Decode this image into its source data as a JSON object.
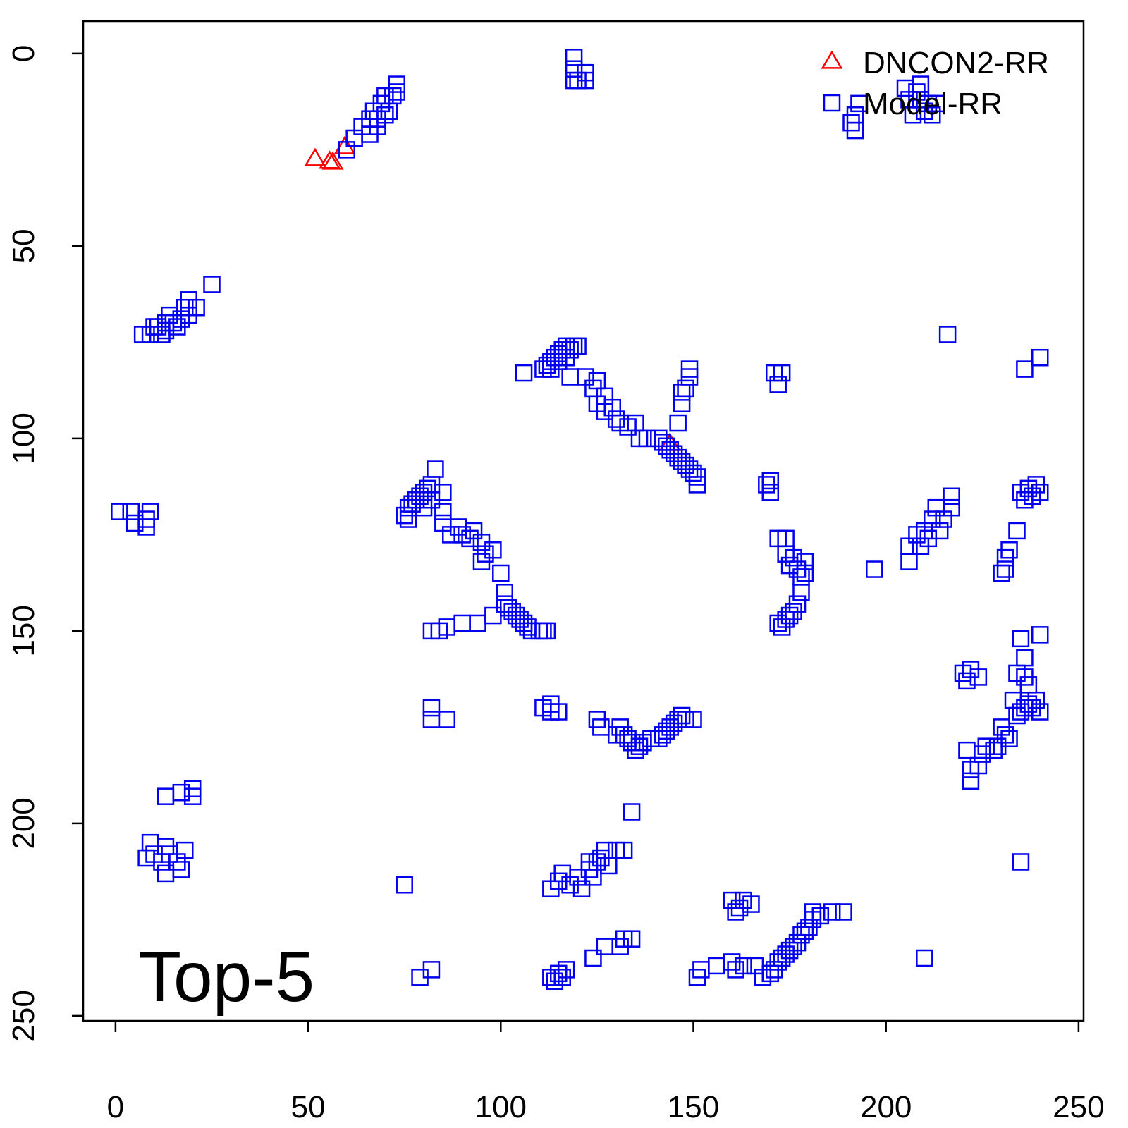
{
  "chart_data": {
    "type": "scatter",
    "xlim": [
      -8.4,
      251.3
    ],
    "ylim": [
      251.3,
      -8.4
    ],
    "xticks": [
      0,
      50,
      100,
      150,
      200,
      250
    ],
    "yticks": [
      0,
      50,
      100,
      150,
      200,
      250
    ],
    "legend": "topright",
    "annotation": "Top-5",
    "series": [
      {
        "name": "DNCON2-RR",
        "color": "#ff0000",
        "marker": "triangle",
        "x": [
          51.8,
          55.6,
          56.4,
          59.5,
          143.9
        ],
        "y": [
          27.5,
          28.2,
          28.4,
          24.4,
          101.5
        ]
      },
      {
        "name": "Model-RR",
        "color": "#0000ee",
        "marker": "square",
        "x": [
          60,
          62,
          64,
          66,
          67,
          68,
          69,
          70,
          70,
          71,
          72,
          73,
          73,
          66,
          68,
          119,
          119,
          119,
          120,
          122,
          122,
          205,
          206,
          207,
          208,
          209,
          210,
          211,
          212,
          213,
          209,
          191,
          192,
          192,
          193,
          7,
          9,
          10,
          11,
          12,
          13,
          14,
          15,
          16,
          17,
          18,
          19,
          19,
          21,
          25,
          13,
          106,
          111,
          112,
          113,
          114,
          115,
          116,
          117,
          118,
          119,
          120,
          113,
          115,
          117,
          118,
          122,
          124,
          125,
          125,
          127,
          127,
          129,
          130,
          131,
          133,
          135,
          136,
          138,
          141,
          142,
          143,
          144,
          145,
          146,
          147,
          148,
          149,
          150,
          151,
          151,
          146,
          147,
          148,
          149,
          149,
          147,
          1,
          4,
          5,
          8,
          8,
          9,
          75,
          76,
          77,
          78,
          79,
          80,
          81,
          82,
          83,
          76,
          80,
          82,
          85,
          85,
          85,
          87,
          89,
          90,
          92,
          93,
          95,
          95,
          96,
          98,
          100,
          101,
          101,
          102,
          103,
          104,
          105,
          106,
          107,
          108,
          110,
          111,
          112,
          98,
          94,
          90,
          86,
          84,
          82,
          111,
          113,
          113,
          115,
          82,
          82,
          86,
          169,
          170,
          170,
          171,
          173,
          172,
          172,
          174,
          174,
          175,
          176,
          177,
          178,
          179,
          178,
          177,
          176,
          175,
          174,
          173,
          172,
          179,
          206,
          206,
          208,
          209,
          210,
          211,
          212,
          213,
          214,
          215,
          217,
          217,
          216,
          197,
          236,
          240,
          235,
          236,
          237,
          238,
          239,
          240,
          234,
          232,
          231,
          230,
          231,
          240,
          235,
          236,
          234,
          236,
          237,
          233,
          234,
          235,
          236,
          237,
          238,
          239,
          240,
          230,
          231,
          232,
          229,
          228,
          226,
          225,
          224,
          222,
          222,
          221,
          220,
          221,
          222,
          224,
          235,
          125,
          126,
          131,
          132,
          133,
          134,
          135,
          136,
          137,
          139,
          141,
          142,
          143,
          144,
          145,
          146,
          147,
          148,
          150,
          130,
          134,
          113,
          115,
          116,
          118,
          120,
          121,
          123,
          124,
          125,
          126,
          127,
          128,
          130,
          132,
          123,
          75,
          9,
          10,
          12,
          13,
          13,
          14,
          16,
          17,
          18,
          13,
          17,
          20,
          20,
          8,
          160,
          161,
          162,
          163,
          165,
          79,
          82,
          113,
          114,
          115,
          116,
          117,
          124,
          127,
          131,
          132,
          134,
          151,
          152,
          156,
          160,
          161,
          163,
          166,
          168,
          170,
          171,
          172,
          173,
          174,
          175,
          176,
          177,
          178,
          179,
          180,
          181,
          181,
          183,
          186,
          189,
          210
        ],
        "y": [
          25,
          22,
          19,
          17,
          15,
          19,
          13,
          11,
          16,
          15,
          11,
          8,
          10,
          21,
          17,
          1,
          4,
          7,
          7,
          5,
          7,
          9,
          12,
          16,
          10,
          12,
          15,
          13,
          16,
          13,
          8,
          18,
          20,
          16,
          13,
          73,
          73,
          71,
          71,
          73,
          72,
          68,
          70,
          71,
          69,
          66,
          68,
          64,
          66,
          60,
          70,
          83,
          82,
          81,
          80,
          79,
          78,
          77,
          76,
          77,
          76,
          76,
          82,
          80,
          79,
          84,
          84,
          87,
          91,
          85,
          89,
          93,
          92,
          95,
          96,
          97,
          96,
          100,
          100,
          100,
          101,
          102,
          103,
          104,
          105,
          106,
          107,
          108,
          109,
          110,
          112,
          96,
          91,
          87,
          84,
          82,
          88,
          119,
          119,
          122,
          121,
          123,
          119,
          120,
          118,
          117,
          116,
          115,
          114,
          113,
          112,
          108,
          121,
          118,
          116,
          114,
          119,
          122,
          125,
          123,
          125,
          126,
          124,
          127,
          132,
          130,
          129,
          135,
          140,
          143,
          144,
          145,
          146,
          147,
          148,
          149,
          150,
          150,
          150,
          150,
          146,
          148,
          148,
          149,
          150,
          150,
          170,
          169,
          171,
          171,
          170,
          173,
          173,
          112,
          111,
          114,
          83,
          83,
          86,
          126,
          126,
          130,
          133,
          131,
          134,
          136,
          135,
          140,
          143,
          145,
          146,
          147,
          149,
          148,
          132,
          128,
          132,
          125,
          128,
          124,
          126,
          121,
          118,
          124,
          121,
          118,
          115,
          73,
          134,
          82,
          79,
          114,
          116,
          113,
          115,
          112,
          114,
          124,
          129,
          131,
          135,
          134,
          151,
          152,
          157,
          161,
          162,
          164,
          168,
          172,
          171,
          170,
          169,
          170,
          168,
          171,
          175,
          177,
          178,
          180,
          181,
          180,
          182,
          185,
          186,
          189,
          181,
          161,
          163,
          160,
          162,
          210,
          173,
          175,
          175,
          177,
          178,
          179,
          181,
          180,
          179,
          178,
          178,
          177,
          176,
          175,
          174,
          173,
          172,
          173,
          173,
          177,
          197,
          217,
          215,
          213,
          216,
          214,
          217,
          212,
          214,
          210,
          209,
          207,
          211,
          207,
          207,
          210,
          216,
          205,
          208,
          210,
          213,
          206,
          208,
          210,
          212,
          207,
          193,
          192,
          191,
          193,
          209,
          220,
          223,
          222,
          220,
          221,
          240,
          238,
          240,
          241,
          239,
          240,
          238,
          235,
          232,
          232,
          230,
          230,
          240,
          238,
          237,
          236,
          238,
          237,
          237,
          240,
          239,
          238,
          236,
          235,
          234,
          233,
          232,
          231,
          229,
          228,
          227,
          225,
          223,
          224,
          223,
          223,
          235
        ]
      }
    ]
  }
}
